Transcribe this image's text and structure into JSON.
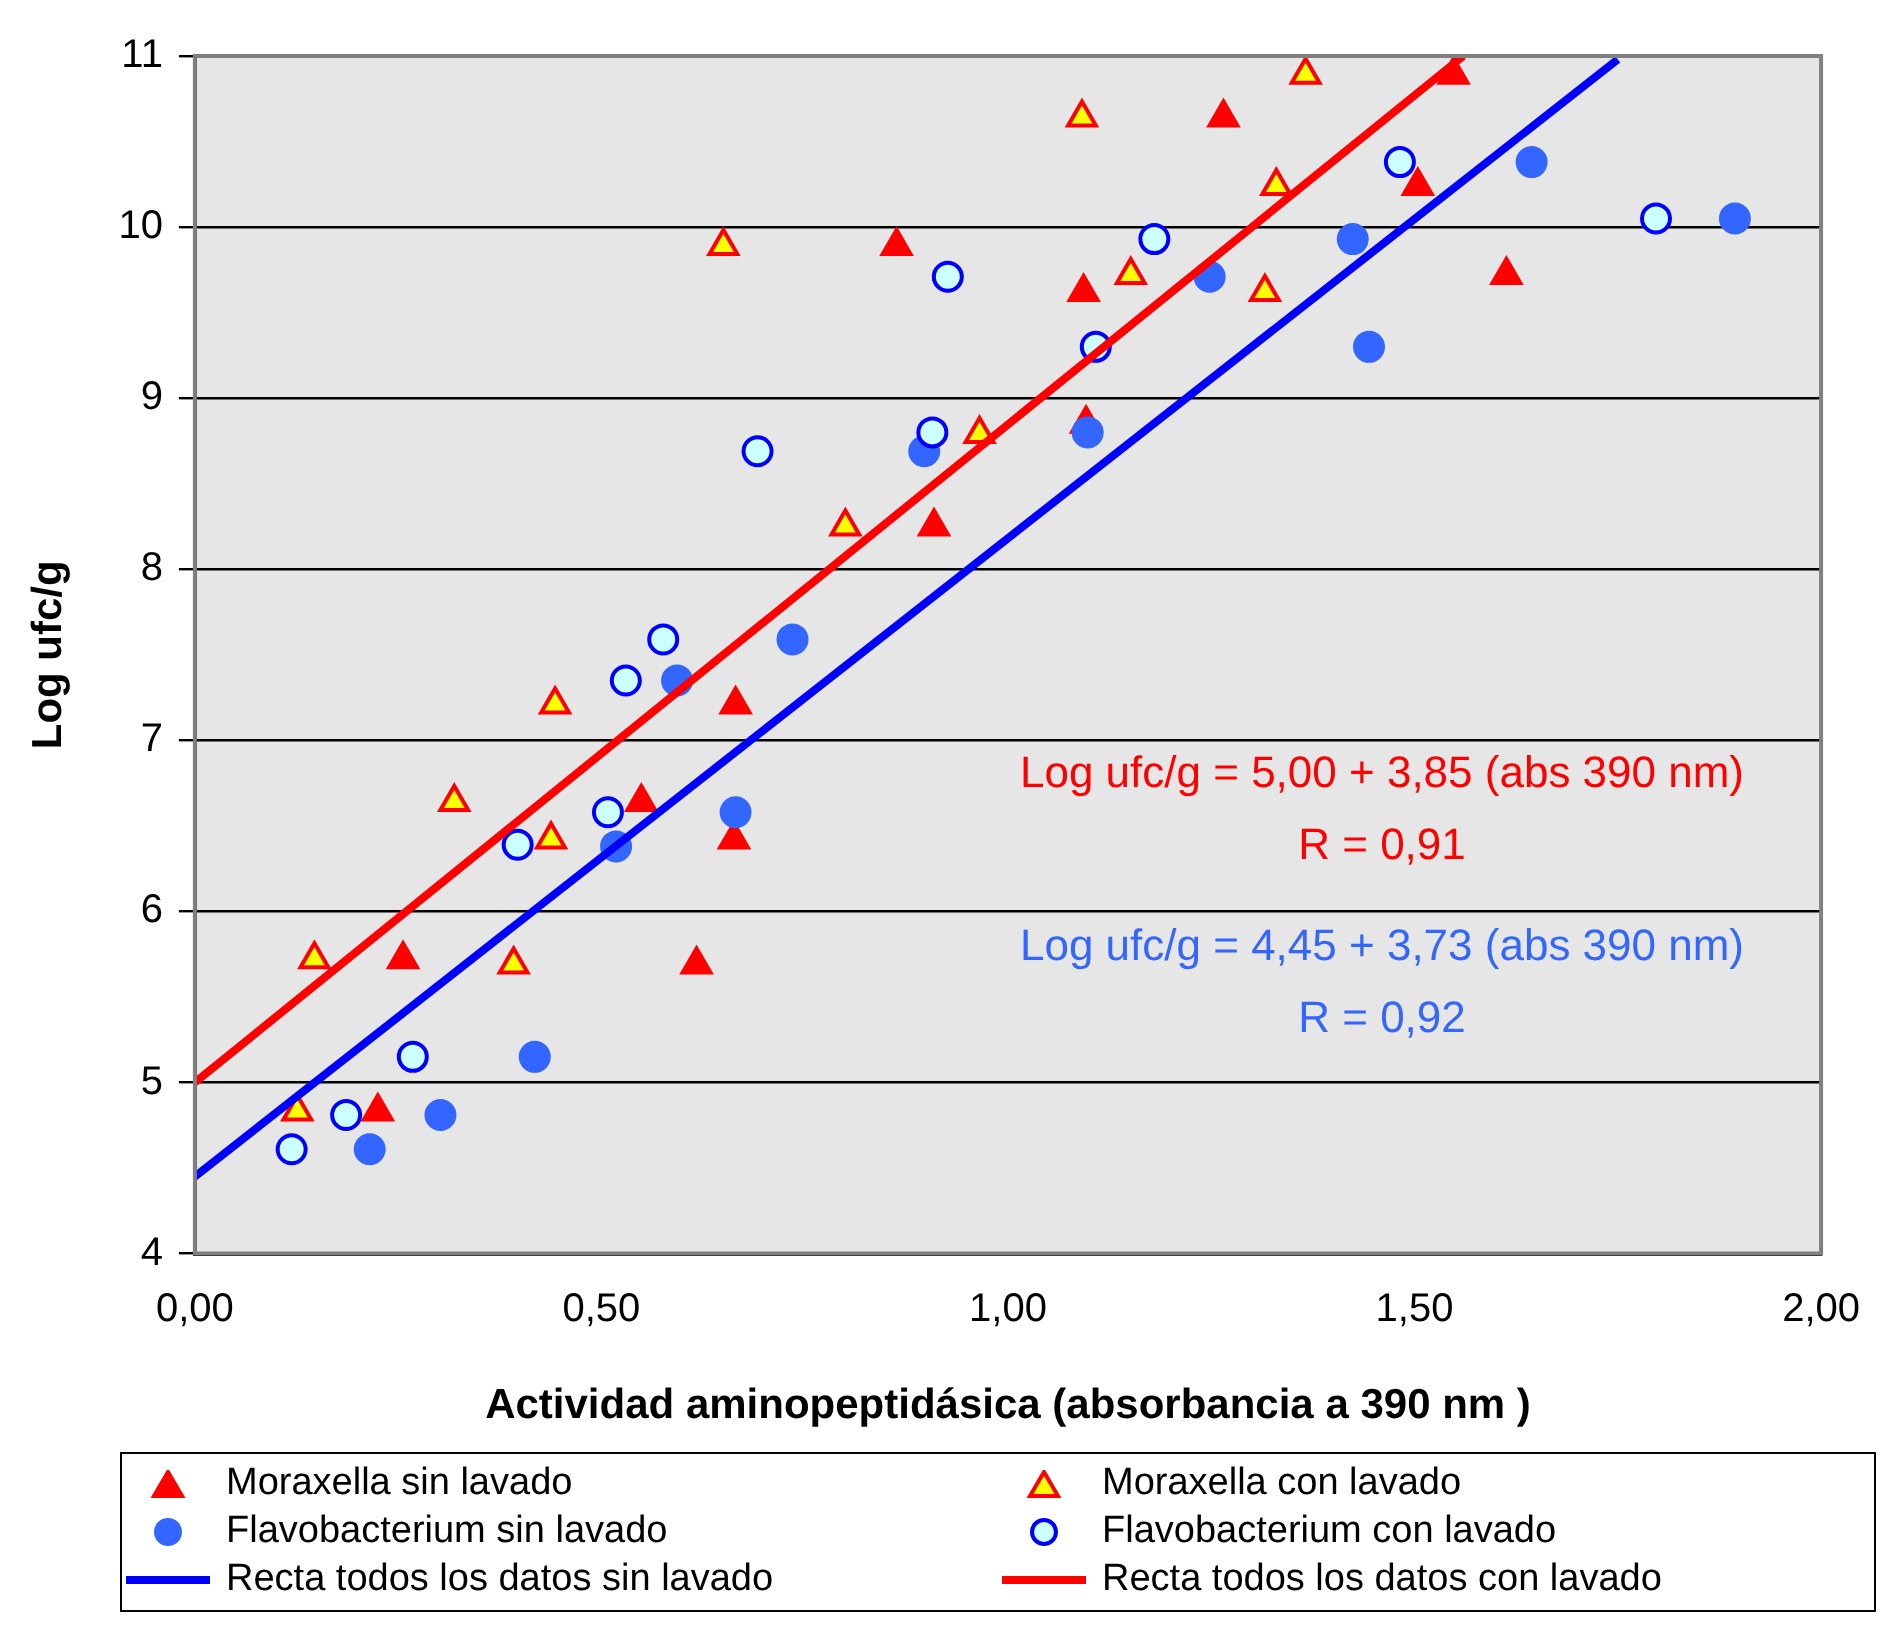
{
  "chart_data": {
    "type": "scatter",
    "xlabel": "Actividad aminopeptidásica (absorbancia a 390 nm )",
    "ylabel": "Log ufc/g",
    "xlim": [
      0,
      2
    ],
    "xticks": [
      {
        "value": 0,
        "label": "0,00"
      },
      {
        "value": 0.5,
        "label": "0,50"
      },
      {
        "value": 1,
        "label": "1,00"
      },
      {
        "value": 1.5,
        "label": "1,50"
      },
      {
        "value": 2,
        "label": "2,00"
      }
    ],
    "ylim": [
      4,
      11
    ],
    "yticks": [
      4,
      5,
      6,
      7,
      8,
      9,
      10,
      11
    ],
    "grid": "y",
    "legend": "bottom",
    "annotations": [
      "Log ufc/g = 5,00 + 3,85 (abs 390 nm)",
      "R = 0,91",
      "Log ufc/g = 4,45 + 3,73 (abs 390 nm)",
      "R = 0,92"
    ],
    "series": [
      {
        "name": "Moraxella sin lavado",
        "marker": "triangle",
        "color": "#ff0000",
        "x": [
          0.225,
          0.256,
          0.549,
          0.617,
          0.663,
          0.665,
          0.863,
          0.909,
          1.093,
          1.096,
          1.265,
          1.504,
          1.548,
          1.613
        ],
        "values": [
          4.83,
          5.72,
          6.64,
          5.69,
          6.42,
          7.21,
          9.89,
          8.25,
          9.62,
          8.85,
          10.64,
          10.24,
          10.89,
          9.72
        ]
      },
      {
        "name": "Moraxella con lavado",
        "marker": "triangle",
        "color": "#ff0000",
        "x": [
          0.126,
          0.147,
          0.319,
          0.392,
          0.438,
          0.443,
          0.65,
          0.8,
          0.965,
          1.091,
          1.151,
          1.316,
          1.33,
          1.366
        ],
        "values": [
          4.83,
          5.72,
          6.64,
          5.69,
          6.42,
          7.21,
          9.89,
          8.25,
          8.79,
          10.64,
          9.72,
          9.62,
          10.24,
          10.89
        ]
      },
      {
        "name": "Flavobacterium sin lavado",
        "marker": "circle",
        "color": "#3366ff",
        "x": [
          0.215,
          0.302,
          0.418,
          0.518,
          0.593,
          0.665,
          0.735,
          0.897,
          1.098,
          1.248,
          1.424,
          1.444,
          1.644,
          1.894
        ],
        "values": [
          4.61,
          4.81,
          5.15,
          6.38,
          7.35,
          6.58,
          7.59,
          8.69,
          8.8,
          9.71,
          9.93,
          9.3,
          10.38,
          10.05
        ]
      },
      {
        "name": "Flavobacterium con lavado",
        "marker": "circle",
        "color": "#0000ff",
        "x": [
          0.119,
          0.186,
          0.268,
          0.397,
          0.508,
          0.53,
          0.576,
          0.692,
          0.907,
          0.926,
          1.108,
          1.18,
          1.482,
          1.797
        ],
        "values": [
          4.61,
          4.81,
          5.15,
          6.39,
          6.58,
          7.35,
          7.59,
          8.69,
          8.8,
          9.71,
          9.3,
          9.93,
          10.38,
          10.05
        ]
      },
      {
        "name": "Recta todos los datos sin lavado",
        "type": "line",
        "marker": "none",
        "color": "#0000ff",
        "x": [
          0,
          1.75
        ],
        "values": [
          4.45,
          10.98
        ]
      },
      {
        "name": "Recta todos los datos con lavado",
        "type": "line",
        "marker": "none",
        "color": "#ff0000",
        "x": [
          0,
          1.56
        ],
        "values": [
          5.0,
          11.0
        ]
      }
    ]
  }
}
